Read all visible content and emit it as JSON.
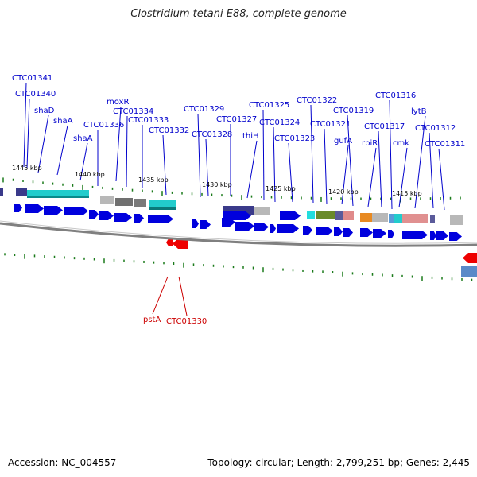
{
  "title": "Clostridium tetani E88, complete genome",
  "footer": {
    "accession": "Accession: NC_004557",
    "summary": "Topology: circular; Length: 2,799,251 bp; Genes: 2,445"
  },
  "colors": {
    "label_forward": "#0000cc",
    "label_reverse": "#cc0000",
    "tick": "#1a7a1a",
    "tick_label": "#000000",
    "backbone": "#808080",
    "cds_forward": "#0000dd",
    "cds_reverse": "#ee0000"
  },
  "scale_labels": [
    "1445 kbp",
    "1440 kbp",
    "1435 kbp",
    "1430 kbp",
    "1425 kbp",
    "1420 kbp",
    "1415 kbp"
  ],
  "forward_gene_labels": [
    "CTC01341",
    "CTC01340",
    "shaD",
    "shaA",
    "shaA",
    "moxR",
    "CTC01336",
    "CTC01334",
    "CTC01333",
    "CTC01332",
    "CTC01329",
    "CTC01328",
    "CTC01327",
    "thiH",
    "CTC01325",
    "CTC01324",
    "CTC01323",
    "CTC01322",
    "CTC01321",
    "CTC01319",
    "gufA",
    "rpiR",
    "CTC01317",
    "CTC01316",
    "cmk",
    "lytB",
    "CTC01312",
    "CTC01311"
  ],
  "reverse_gene_labels": [
    "pstA",
    "CTC01330"
  ]
}
